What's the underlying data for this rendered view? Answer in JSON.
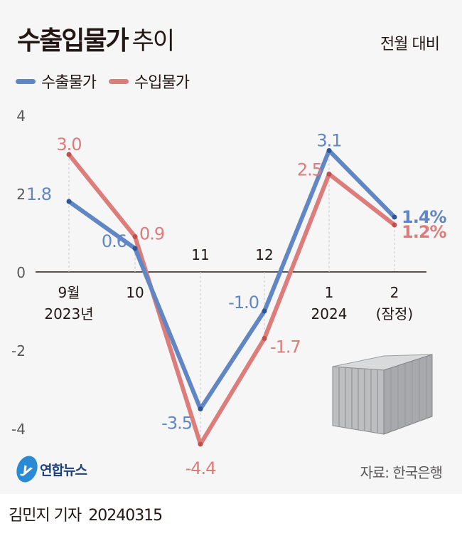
{
  "header": {
    "title_bold": "수출입물가",
    "title_light": "추이",
    "unit": "전월 대비"
  },
  "legend": [
    {
      "label": "수출물가",
      "color": "#6186c4"
    },
    {
      "label": "수입물가",
      "color": "#dc7c7b"
    }
  ],
  "footer": {
    "source": "자료: 한국은행",
    "logo_text": "연합뉴스",
    "reporter": "김민지 기자",
    "date": "20240315"
  },
  "chart_data": {
    "type": "line",
    "title": "수출입물가 추이",
    "ylabel": "전월 대비",
    "ylim": [
      -4.6,
      4
    ],
    "yticks": [
      "4",
      "2",
      "0",
      "-2",
      "-4"
    ],
    "ytick_values": [
      4,
      2,
      0,
      -2,
      -4
    ],
    "categories": [
      [
        "9월",
        "2023년"
      ],
      [
        "10"
      ],
      [
        "11"
      ],
      [
        "12"
      ],
      [
        "1",
        "2024"
      ],
      [
        "2",
        "(잠정)"
      ]
    ],
    "series": [
      {
        "name": "수출물가",
        "color": "#6186c4",
        "values": [
          1.8,
          0.6,
          -3.5,
          -1.0,
          3.1,
          1.4
        ],
        "labels": [
          "1.8",
          "0.6",
          "-3.5",
          "-1.0",
          "3.1",
          "1.4%"
        ]
      },
      {
        "name": "수입물가",
        "color": "#dc7c7b",
        "values": [
          3.0,
          0.9,
          -4.4,
          -1.7,
          2.5,
          1.2
        ],
        "labels": [
          "3.0",
          "0.9",
          "-4.4",
          "-1.7",
          "2.5",
          "1.2%"
        ]
      }
    ],
    "grid": false,
    "legend_position": "top-left"
  }
}
